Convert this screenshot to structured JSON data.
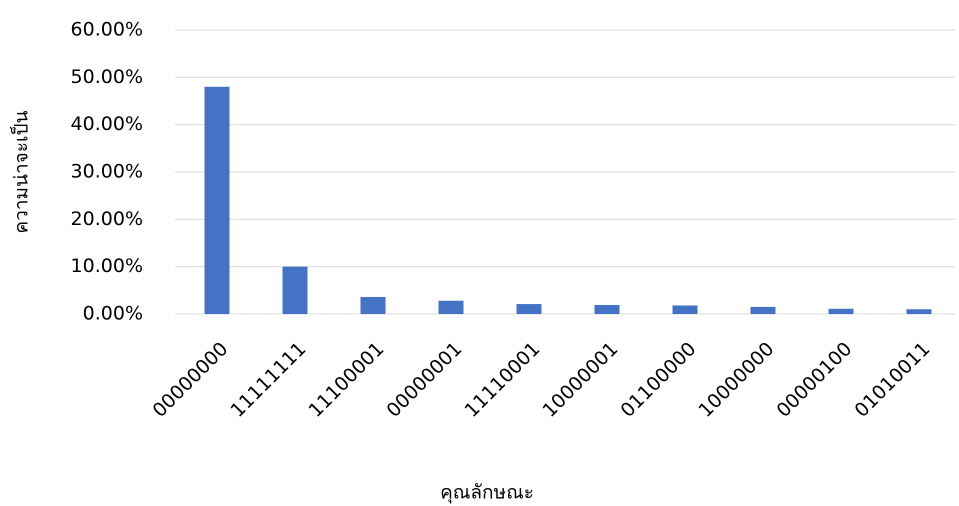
{
  "chart_data": {
    "type": "bar",
    "x_label": "คุณลักษณะ",
    "y_label": "ความน่าจะเป็น",
    "categories": [
      "00000000",
      "11111111",
      "11100001",
      "00000001",
      "11110001",
      "10000001",
      "01100000",
      "10000000",
      "00000100",
      "01010011"
    ],
    "values": [
      48,
      10,
      3.6,
      2.8,
      2.1,
      1.9,
      1.8,
      1.5,
      1.1,
      1.0
    ],
    "color": "#4472c4",
    "ylim": [
      0,
      60
    ],
    "yticks": [
      {
        "value": 0,
        "label": "0.00%"
      },
      {
        "value": 10,
        "label": "10.00%"
      },
      {
        "value": 20,
        "label": "20.00%"
      },
      {
        "value": 30,
        "label": "30.00%"
      },
      {
        "value": 40,
        "label": "40.00%"
      },
      {
        "value": 50,
        "label": "50.00%"
      },
      {
        "value": 60,
        "label": "60.00%"
      }
    ],
    "grid": true
  }
}
